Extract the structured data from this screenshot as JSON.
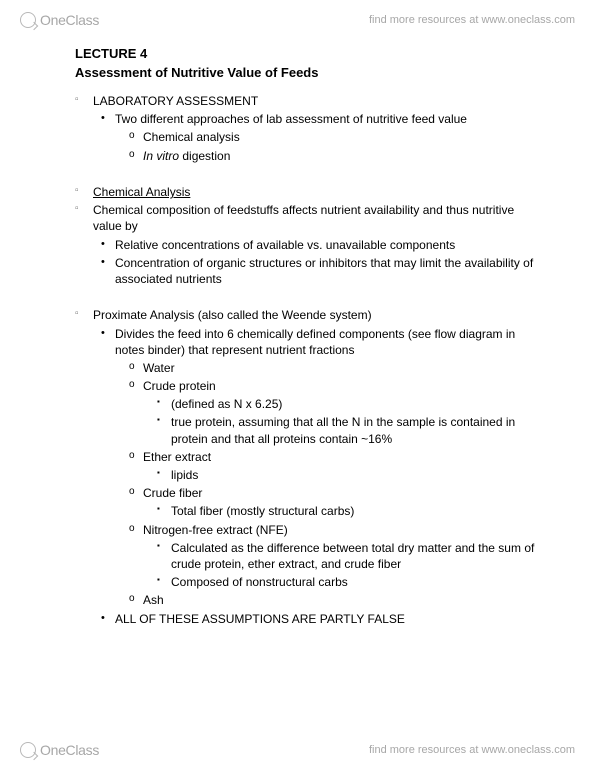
{
  "header": {
    "logo_text": "OneClass",
    "tagline": "find more resources at www.oneclass.com"
  },
  "footer": {
    "logo_text": "OneClass",
    "tagline": "find more resources at www.oneclass.com"
  },
  "doc": {
    "lecture_label": "LECTURE 4",
    "subtitle": "Assessment of Nutritive Value of Feeds",
    "section_lab": "LABORATORY ASSESSMENT",
    "lab_intro": "Two different approaches of lab assessment of nutritive feed value",
    "lab_a": "Chemical analysis",
    "lab_b_prefix": "In vitro",
    "lab_b_rest": " digestion",
    "chem_heading": "Chemical Analysis",
    "chem_intro": "Chemical composition of feedstuffs affects nutrient availability and thus nutritive value by",
    "chem_p1": "Relative concentrations of available vs. unavailable components",
    "chem_p2": "Concentration of organic structures or inhibitors that may limit the availability of associated nutrients",
    "prox_heading": "Proximate Analysis (also called the Weende system)",
    "prox_intro": "Divides the feed into 6 chemically defined components (see flow diagram in notes binder) that represent nutrient fractions",
    "c_water": "Water",
    "c_cp": "Crude protein",
    "cp_def": "(defined as N x 6.25)",
    "cp_true": "true protein, assuming that all the N in the sample is contained in protein and that all proteins contain ~16%",
    "c_ee": "Ether extract",
    "ee_sub": "lipids",
    "c_cf": "Crude fiber",
    "cf_sub": "Total fiber (mostly structural carbs)",
    "c_nfe": "Nitrogen-free extract (NFE)",
    "nfe_s1": "Calculated as the difference between total dry matter and the sum of crude protein, ether extract, and crude fiber",
    "nfe_s2": "Composed of nonstructural carbs",
    "c_ash": "Ash",
    "assump": "ALL OF THESE ASSUMPTIONS ARE PARTLY FALSE"
  },
  "colors": {
    "text": "#000000",
    "watermark": "#a7a7a7",
    "background": "#ffffff"
  }
}
